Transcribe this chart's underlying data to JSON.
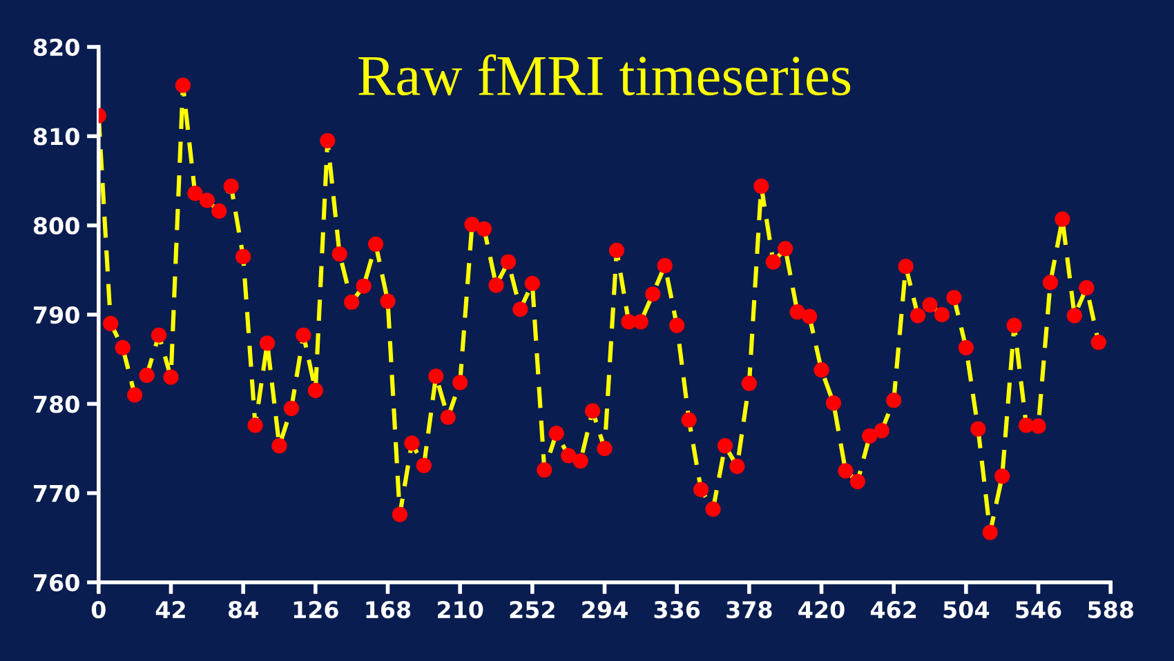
{
  "chart_data": {
    "type": "line",
    "title": "Raw fMRI timeseries",
    "x": [
      0,
      7,
      14,
      21,
      28,
      35,
      42,
      49,
      56,
      63,
      70,
      77,
      84,
      91,
      98,
      105,
      112,
      119,
      126,
      133,
      140,
      147,
      154,
      161,
      168,
      175,
      182,
      189,
      196,
      203,
      210,
      217,
      224,
      231,
      238,
      245,
      252,
      259,
      266,
      273,
      280,
      287,
      294,
      301,
      308,
      315,
      322,
      329,
      336,
      343,
      350,
      357,
      364,
      371,
      378,
      385,
      392,
      399,
      406,
      413,
      420,
      427,
      434,
      441,
      448,
      455,
      462,
      469,
      476,
      483,
      490,
      497,
      504,
      511,
      518,
      525,
      532,
      539,
      546,
      553,
      560,
      567,
      574,
      581
    ],
    "series": [
      {
        "color": "#ffff00",
        "colors": [
          "#ff0000",
          "#ff0000",
          "#ff0000",
          "#ff0000",
          "#ff0000",
          "#ff0000",
          "#ff0000",
          "#ff0000",
          "#ff0000",
          "#ff0000",
          "#ff0000",
          "#ff0000",
          "#ff0000",
          "#ff0000",
          "#ff0000",
          "#ff0000",
          "#ff0000",
          "#ff0000",
          "#ff0000",
          "#ff0000",
          "#ff0000",
          "#ff0000",
          "#ff0000",
          "#ff0000",
          "#ff0000",
          "#ff0000",
          "#ff0000",
          "#ff0000",
          "#ff0000",
          "#ff0000",
          "#ff0000",
          "#ff0000",
          "#ff0000",
          "#ff0000",
          "#ff0000",
          "#ff0000",
          "#ff0000",
          "#ff0000",
          "#ff0000",
          "#ff0000",
          "#ff0000",
          "#ff0000",
          "#ff0000",
          "#ff0000",
          "#ff0000",
          "#ff0000",
          "#ff0000",
          "#ff0000",
          "#ff0000",
          "#ff0000",
          "#ff0000",
          "#ff0000",
          "#ff0000",
          "#ff0000",
          "#ff0000",
          "#ff0000",
          "#ff0000",
          "#ff0000",
          "#ff0000",
          "#ff0000",
          "#ff0000",
          "#ff0000",
          "#ff0000",
          "#ff0000",
          "#ff0000",
          "#ff0000",
          "#ff0000",
          "#ff0000",
          "#ff0000",
          "#ff0000",
          "#ff0000",
          "#ff0000",
          "#ff0000",
          "#ff0000",
          "#ff0000",
          "#ff0000",
          "#ff0000",
          "#ff0000",
          "#ff0000",
          "#ff0000",
          "#ff0000",
          "#ff0000",
          "#ff0000",
          "#ff0000"
        ],
        "values": [
          812.3,
          789,
          786.3,
          781,
          783.2,
          787.7,
          783,
          815.7,
          803.6,
          802.8,
          801.6,
          804.4,
          796.5,
          777.6,
          786.8,
          775.3,
          779.5,
          787.7,
          781.5,
          809.5,
          796.8,
          791.4,
          793.2,
          797.9,
          791.5,
          767.6,
          775.6,
          773.1,
          783.1,
          778.5,
          782.4,
          800.1,
          799.6,
          793.3,
          795.9,
          790.6,
          793.5,
          772.6,
          776.7,
          774.2,
          773.6,
          779.2,
          775,
          797.2,
          789.2,
          789.2,
          792.3,
          795.5,
          788.8,
          778.2,
          770.4,
          768.2,
          775.3,
          773,
          782.3,
          804.4,
          795.9,
          797.4,
          790.3,
          789.8,
          783.8,
          780.1,
          772.5,
          771.3,
          776.4,
          777,
          780.4,
          795.4,
          789.9,
          791.1,
          790,
          791.9,
          786.3,
          777.2,
          765.6,
          771.9,
          788.8,
          777.6,
          777.5,
          793.6,
          800.7,
          789.9,
          793,
          786.9
        ]
      }
    ],
    "xlim": [
      0,
      588
    ],
    "xticks": [
      0,
      42,
      84,
      126,
      168,
      210,
      252,
      294,
      336,
      378,
      420,
      462,
      504,
      546,
      588
    ],
    "ylim": [
      760,
      820
    ],
    "yticks": [
      760,
      770,
      780,
      790,
      800,
      810,
      820
    ],
    "marker": "circle",
    "line_style": "dashed",
    "grid": false,
    "legend": false
  }
}
